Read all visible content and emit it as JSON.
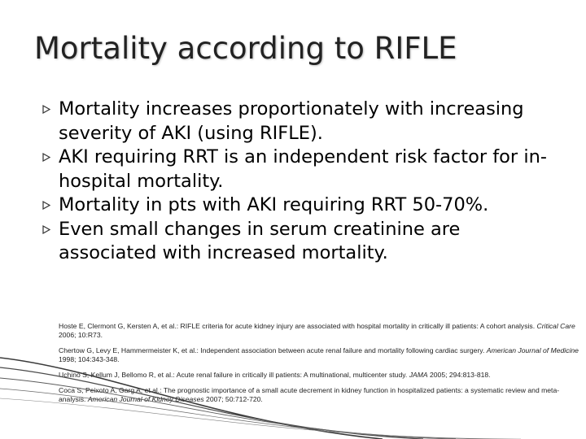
{
  "slide": {
    "title": "Mortality according to RIFLE",
    "bullet_icon": "hollow-arrow-bullet-icon",
    "bullets": [
      "Mortality increases proportionately with increasing severity of AKI (using RIFLE).",
      "AKI requiring RRT is an independent risk factor for in-hospital mortality.",
      "Mortality in pts with AKI requiring RRT 50-70%.",
      "Even small changes in serum creatinine are associated with increased mortality."
    ],
    "references": [
      {
        "pre": "Hoste E, Clermont G, Kersten A, et al.: RIFLE criteria for acute kidney injury are associated with hospital mortality in critically ill patients: A cohort analysis. ",
        "journal": "Critical Care",
        "post": " 2006; 10:R73."
      },
      {
        "pre": "Chertow G, Levy E, Hammermeister K, et al.: Independent association between acute renal failure and mortality following cardiac surgery. ",
        "journal": "American Journal of Medicine",
        "post": " 1998; 104:343-348."
      },
      {
        "pre": "Uchino S, Kellum J, Bellomo R, et al.: Acute renal failure in critically ill patients: A multinational, multicenter study. ",
        "journal": "JAMA",
        "post": " 2005; 294:813-818."
      },
      {
        "pre": "Coca S, Peixoto A, Garg A, et al.: The prognostic importance of a small acute decrement in kidney function in hospitalized patients: a systematic review and meta-analysis. ",
        "journal": "American Journal of Kidney Diseases",
        "post": " 2007; 50:712-720."
      }
    ]
  }
}
